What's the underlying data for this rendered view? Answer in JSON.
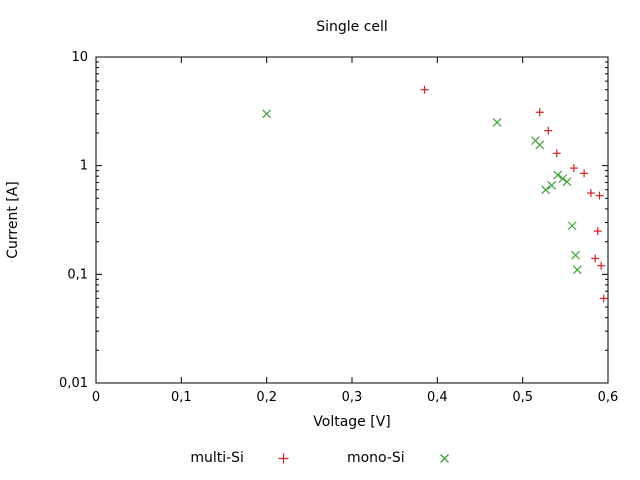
{
  "chart_data": {
    "type": "scatter",
    "title": "Single cell",
    "xlabel": "Voltage [V]",
    "ylabel": "Current [A]",
    "xlim": [
      0,
      0.6
    ],
    "ylim": [
      0.01,
      10
    ],
    "x_scale": "linear",
    "y_scale": "log",
    "grid": false,
    "legend_position": "bottom-center",
    "frame_color": "#000000",
    "x_ticks": [
      0,
      0.1,
      0.2,
      0.3,
      0.4,
      0.5,
      0.6
    ],
    "x_tick_labels": [
      "0",
      "0,1",
      "0,2",
      "0,3",
      "0,4",
      "0,5",
      "0,6"
    ],
    "y_ticks": [
      0.01,
      0.1,
      1,
      10
    ],
    "y_tick_labels": [
      "0,01",
      "0,1",
      "1",
      "10"
    ],
    "series": [
      {
        "name": "multi-Si",
        "marker": "plus",
        "color": "#d02420",
        "points": [
          [
            0.385,
            5.0
          ],
          [
            0.52,
            3.1
          ],
          [
            0.53,
            2.1
          ],
          [
            0.54,
            1.3
          ],
          [
            0.56,
            0.95
          ],
          [
            0.572,
            0.85
          ],
          [
            0.58,
            0.56
          ],
          [
            0.59,
            0.53
          ],
          [
            0.588,
            0.25
          ],
          [
            0.585,
            0.14
          ],
          [
            0.592,
            0.12
          ],
          [
            0.595,
            0.06
          ]
        ]
      },
      {
        "name": "mono-Si",
        "marker": "cross",
        "color": "#42a03c",
        "points": [
          [
            0.2,
            3.0
          ],
          [
            0.47,
            2.5
          ],
          [
            0.515,
            1.7
          ],
          [
            0.52,
            1.55
          ],
          [
            0.527,
            0.6
          ],
          [
            0.534,
            0.66
          ],
          [
            0.541,
            0.82
          ],
          [
            0.547,
            0.76
          ],
          [
            0.552,
            0.71
          ],
          [
            0.558,
            0.28
          ],
          [
            0.562,
            0.15
          ],
          [
            0.564,
            0.11
          ]
        ]
      }
    ]
  }
}
